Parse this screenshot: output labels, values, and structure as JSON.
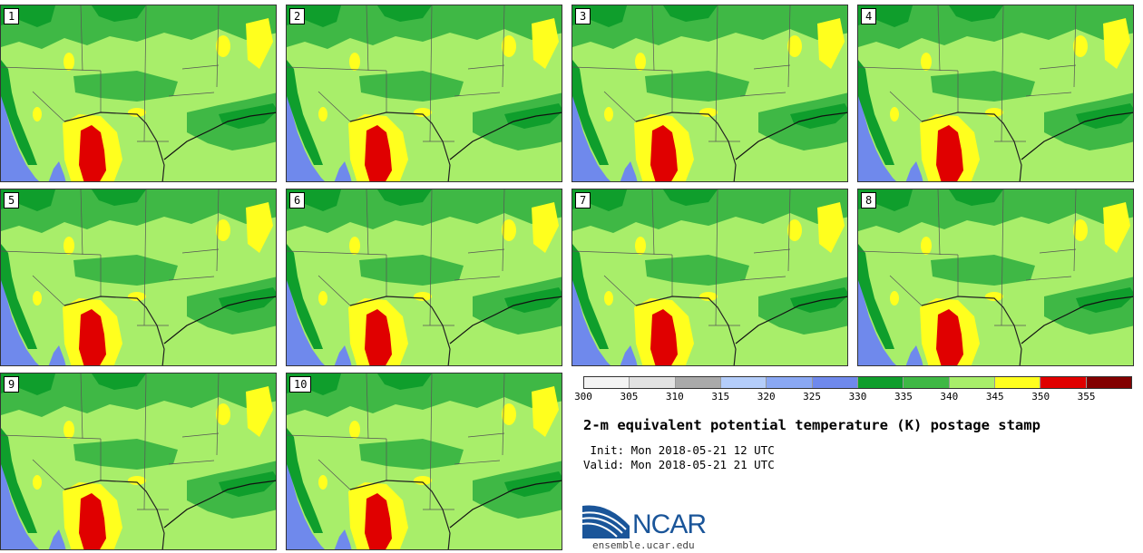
{
  "panels": [
    {
      "label": "1"
    },
    {
      "label": "2"
    },
    {
      "label": "3"
    },
    {
      "label": "4"
    },
    {
      "label": "5"
    },
    {
      "label": "6"
    },
    {
      "label": "7"
    },
    {
      "label": "8"
    },
    {
      "label": "9"
    },
    {
      "label": "10"
    }
  ],
  "legend": {
    "ticks": [
      "300",
      "305",
      "310",
      "315",
      "320",
      "325",
      "330",
      "335",
      "340",
      "345",
      "350",
      "355"
    ],
    "colors": [
      "#f4f4f4",
      "#e2e2e2",
      "#aaaaaa",
      "#b4cdfa",
      "#8aa8f4",
      "#6f89ec",
      "#0f9e2c",
      "#3fb845",
      "#a8ee6a",
      "#ffff1e",
      "#e00000",
      "#820000"
    ]
  },
  "title": "2-m equivalent potential temperature (K) postage stamp",
  "init": " Init: Mon 2018-05-21 12 UTC",
  "valid": "Valid: Mon 2018-05-21 21 UTC",
  "logo": {
    "text": "NCAR",
    "site": "ensemble.ucar.edu"
  },
  "colors": {
    "ocean": "#6f89ec",
    "dark_green": "#0f9e2c",
    "green": "#3fb845",
    "light_green": "#a8ee6a",
    "yellow": "#ffff1e",
    "red": "#e00000",
    "maroon": "#820000"
  }
}
